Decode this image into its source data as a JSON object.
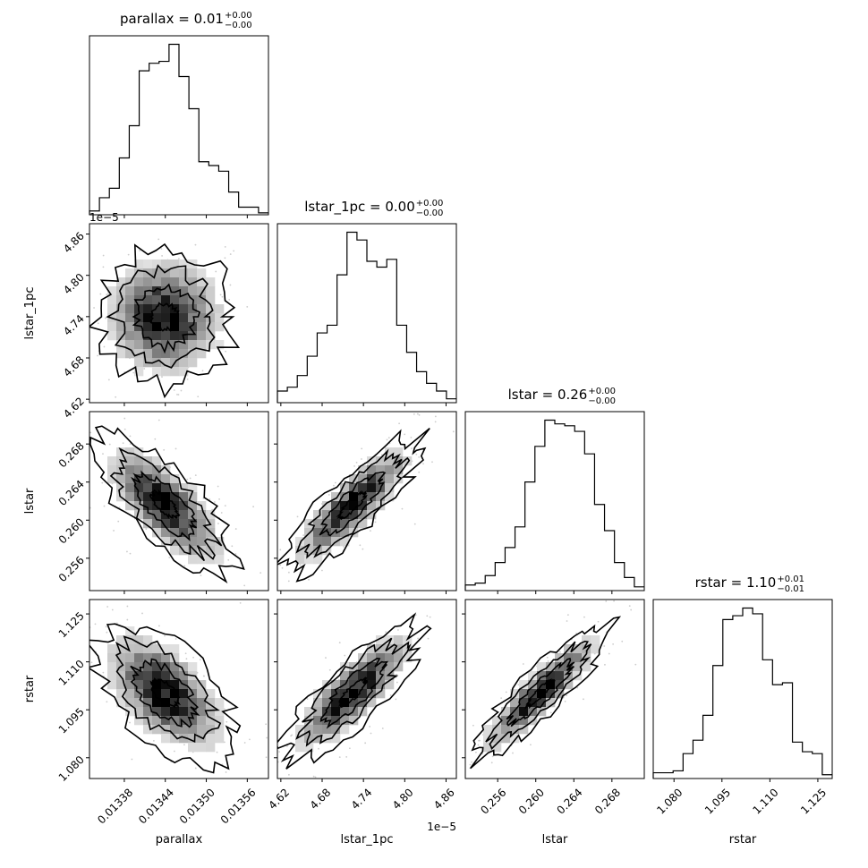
{
  "params": [
    "parallax",
    "lstar_1pc",
    "lstar",
    "rstar"
  ],
  "titles": [
    {
      "main": "parallax = 0.01",
      "sup": "+0.00",
      "sub": "−0.00"
    },
    {
      "main": "lstar_1pc = 0.00",
      "sup": "+0.00",
      "sub": "−0.00"
    },
    {
      "main": "lstar = 0.26",
      "sup": "+0.00",
      "sub": "−0.00"
    },
    {
      "main": "rstar = 1.10",
      "sup": "+0.01",
      "sub": "−0.01"
    }
  ],
  "axis_labels": {
    "x": [
      "parallax",
      "lstar_1pc",
      "lstar",
      "rstar"
    ],
    "y": [
      "lstar_1pc",
      "lstar",
      "rstar"
    ]
  },
  "x_ticks": [
    [
      "0.01338",
      "0.01344",
      "0.01350",
      "0.01356"
    ],
    [
      "4.62",
      "4.68",
      "4.74",
      "4.80",
      "4.86"
    ],
    [
      "0.256",
      "0.260",
      "0.264",
      "0.268"
    ],
    [
      "1.080",
      "1.095",
      "1.110",
      "1.125"
    ]
  ],
  "y_ticks": [
    [
      "4.62",
      "4.68",
      "4.74",
      "4.80",
      "4.86"
    ],
    [
      "0.256",
      "0.260",
      "0.264",
      "0.268"
    ],
    [
      "1.080",
      "1.095",
      "1.110",
      "1.125"
    ]
  ],
  "offset_labels": {
    "lstar_1pc_y": "1e−5",
    "lstar_1pc_x": "1e−5"
  },
  "chart_data": {
    "type": "corner",
    "ranges": {
      "parallax": [
        0.013329,
        0.013591
      ],
      "lstar_1pc": [
        4.615,
        4.875
      ],
      "lstar": [
        0.2526,
        0.2714
      ],
      "rstar": [
        1.0735,
        1.1295
      ]
    },
    "tick_values": {
      "parallax": [
        0.01338,
        0.01344,
        0.0135,
        0.01356
      ],
      "lstar_1pc": [
        4.62,
        4.68,
        4.74,
        4.8,
        4.86
      ],
      "lstar": [
        0.256,
        0.26,
        0.264,
        0.268
      ],
      "rstar": [
        1.08,
        1.095,
        1.11,
        1.125
      ]
    },
    "histograms": [
      {
        "name": "parallax",
        "counts": [
          2,
          9,
          14,
          30,
          47,
          76,
          80,
          81,
          90,
          73,
          56,
          28,
          26,
          23,
          12,
          4,
          4,
          1
        ]
      },
      {
        "name": "lstar_1pc",
        "counts": [
          6,
          8,
          14,
          24,
          36,
          40,
          66,
          88,
          84,
          73,
          70,
          74,
          40,
          26,
          16,
          10,
          6,
          2
        ]
      },
      {
        "name": "lstar",
        "counts": [
          3,
          4,
          8,
          15,
          23,
          34,
          58,
          77,
          91,
          89,
          88,
          85,
          73,
          46,
          32,
          15,
          7,
          2
        ]
      },
      {
        "name": "rstar",
        "counts": [
          3,
          3,
          4,
          13,
          20,
          33,
          59,
          83,
          85,
          89,
          86,
          62,
          49,
          50,
          19,
          14,
          13,
          2
        ]
      }
    ],
    "pairs": [
      {
        "x": "parallax",
        "y": "lstar_1pc",
        "corr": 0.0
      },
      {
        "x": "parallax",
        "y": "lstar",
        "corr": -0.72
      },
      {
        "x": "lstar_1pc",
        "y": "lstar",
        "corr": 0.85
      },
      {
        "x": "parallax",
        "y": "rstar",
        "corr": -0.55
      },
      {
        "x": "lstar_1pc",
        "y": "rstar",
        "corr": 0.82
      },
      {
        "x": "lstar",
        "y": "rstar",
        "corr": 0.9
      }
    ]
  }
}
